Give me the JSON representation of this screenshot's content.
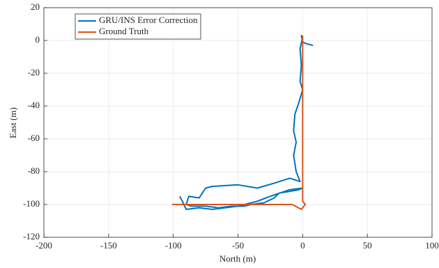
{
  "chart_data": {
    "type": "line",
    "x_label": "North (m)",
    "y_label": "East (m)",
    "xlim": [
      -200,
      100
    ],
    "ylim": [
      -120,
      20
    ],
    "xticks": [
      -200,
      -150,
      -100,
      -50,
      0,
      50,
      100
    ],
    "yticks": [
      -120,
      -100,
      -80,
      -60,
      -40,
      -20,
      0,
      20
    ],
    "grid": true,
    "legend": "upper-left",
    "series": [
      {
        "name": "GRU/INS Error Correction",
        "color": "#0072bd",
        "x": [
          8,
          3,
          0,
          -1,
          0,
          -2,
          -1,
          -2,
          0,
          -3,
          -6,
          -7,
          -5,
          -7,
          -5,
          -2,
          -10,
          -22,
          -35,
          -50,
          -70,
          -75,
          -80,
          -88,
          -90,
          -86,
          -75,
          -65,
          -55,
          -45,
          -40,
          -30,
          -22,
          -18,
          -10,
          -3,
          0,
          -10,
          -25,
          -35,
          -50,
          -60,
          -70,
          -80,
          -90,
          -93,
          -95
        ],
        "y": [
          -3,
          -2,
          -1,
          3,
          2,
          -5,
          -15,
          -25,
          -30,
          -38,
          -45,
          -55,
          -62,
          -70,
          -80,
          -86,
          -84,
          -87,
          -90,
          -88,
          -89,
          -90,
          -96,
          -95,
          -100,
          -101,
          -101,
          -102,
          -101,
          -101,
          -100,
          -99,
          -96,
          -93,
          -92,
          -91,
          -90,
          -91,
          -95,
          -98,
          -101,
          -102,
          -103,
          -102,
          -103,
          -98,
          -95
        ]
      },
      {
        "name": "Ground Truth",
        "color": "#d95319",
        "x": [
          -101,
          -8,
          -1,
          2,
          0,
          0
        ],
        "y": [
          -100,
          -100,
          -103,
          -100,
          -98,
          3
        ]
      }
    ]
  }
}
